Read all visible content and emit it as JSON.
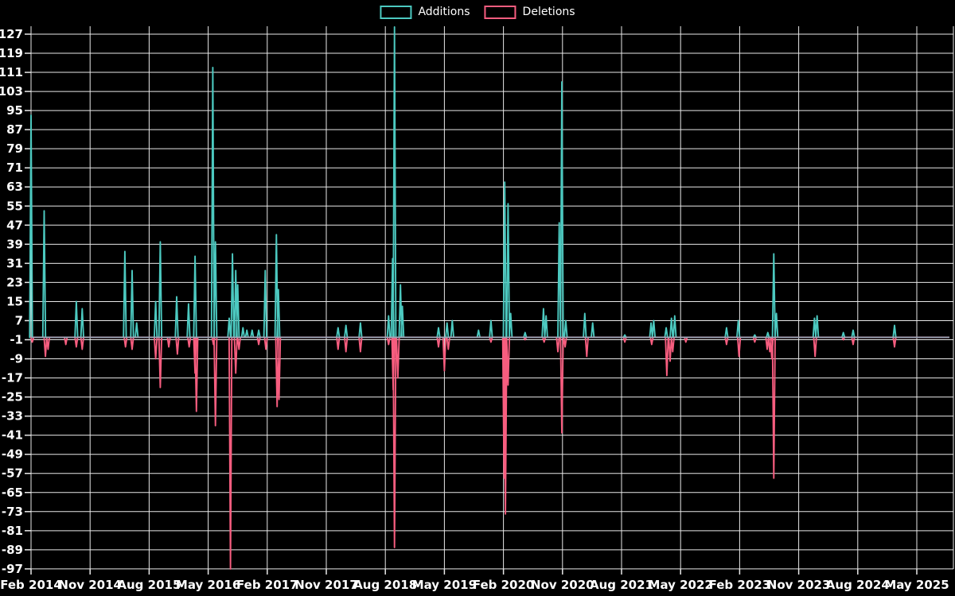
{
  "background": "#000000",
  "legend": {
    "items": [
      {
        "label": "Additions",
        "color": "#4CC9C0"
      },
      {
        "label": "Deletions",
        "color": "#F75D7F"
      }
    ]
  },
  "chart_data": {
    "type": "line",
    "title": "",
    "description": "Code-frequency style spike chart of additions (teal, above zero) and deletions (pink, below zero) from Feb 2014 to May 2025; flat at zero between sparse spikes",
    "x_unit": "months_since_2014_02",
    "x_axis": {
      "tick_labels": [
        "Feb 2014",
        "Nov 2014",
        "Aug 2015",
        "May 2016",
        "Feb 2017",
        "Nov 2017",
        "Aug 2018",
        "May 2019",
        "Feb 2020",
        "Nov 2020",
        "Aug 2021",
        "May 2022",
        "Feb 2023",
        "Nov 2023",
        "Aug 2024",
        "May 2025"
      ],
      "months_per_tick": 9
    },
    "y_axis": {
      "ticks": [
        127,
        119,
        111,
        103,
        95,
        87,
        79,
        71,
        63,
        55,
        47,
        39,
        31,
        23,
        15,
        7,
        -1,
        -9,
        -17,
        -25,
        -33,
        -41,
        -49,
        -57,
        -65,
        -73,
        -81,
        -89,
        -97
      ],
      "range_shown": [
        -97,
        127
      ]
    },
    "grid": true,
    "grid_color": "#E8E8E8",
    "zero_line_color": "#98A8B8",
    "legend_position": "top-center",
    "series": [
      {
        "name": "Additions",
        "color": "#4CC9C0",
        "baseline": 0,
        "spikes": [
          [
            0,
            93
          ],
          [
            2,
            53
          ],
          [
            6.9,
            15
          ],
          [
            7.8,
            12
          ],
          [
            14.3,
            36
          ],
          [
            15.4,
            28
          ],
          [
            16.1,
            6
          ],
          [
            19,
            15
          ],
          [
            19.7,
            40
          ],
          [
            22.2,
            17
          ],
          [
            24,
            14
          ],
          [
            25,
            34
          ],
          [
            27.7,
            113
          ],
          [
            28.1,
            40
          ],
          [
            30.2,
            8
          ],
          [
            30.7,
            35
          ],
          [
            31.2,
            28
          ],
          [
            31.5,
            22
          ],
          [
            32.3,
            4
          ],
          [
            32.9,
            3
          ],
          [
            33.7,
            3
          ],
          [
            34.7,
            3
          ],
          [
            35.7,
            28
          ],
          [
            37.4,
            43
          ],
          [
            37.7,
            20
          ],
          [
            46.8,
            4
          ],
          [
            48,
            5
          ],
          [
            50.2,
            6
          ],
          [
            54.5,
            9
          ],
          [
            55.1,
            33
          ],
          [
            55.4,
            130
          ],
          [
            56.3,
            22
          ],
          [
            56.6,
            13
          ],
          [
            62.1,
            4
          ],
          [
            63.4,
            6
          ],
          [
            64.2,
            7
          ],
          [
            68.2,
            3
          ],
          [
            70.1,
            7
          ],
          [
            72.2,
            65
          ],
          [
            72.7,
            56
          ],
          [
            73.1,
            10
          ],
          [
            75.3,
            2
          ],
          [
            78.1,
            12
          ],
          [
            78.5,
            9
          ],
          [
            80.5,
            48
          ],
          [
            80.9,
            107
          ],
          [
            81.5,
            7
          ],
          [
            84.4,
            10
          ],
          [
            85.6,
            6
          ],
          [
            90.5,
            1
          ],
          [
            94.5,
            6
          ],
          [
            94.9,
            7
          ],
          [
            96.8,
            4
          ],
          [
            97.6,
            8
          ],
          [
            98.1,
            9
          ],
          [
            106,
            4
          ],
          [
            107.8,
            7
          ],
          [
            110.3,
            1
          ],
          [
            112.3,
            2
          ],
          [
            113.2,
            35
          ],
          [
            113.6,
            10
          ],
          [
            119.4,
            8
          ],
          [
            119.8,
            9
          ],
          [
            123.8,
            2
          ],
          [
            125.3,
            3
          ],
          [
            131.6,
            5
          ]
        ]
      },
      {
        "name": "Deletions",
        "color": "#F75D7F",
        "baseline": 0,
        "spikes": [
          [
            0.2,
            -2
          ],
          [
            2.2,
            -8
          ],
          [
            2.6,
            -5
          ],
          [
            5.3,
            -3
          ],
          [
            6.9,
            -4
          ],
          [
            7.8,
            -5
          ],
          [
            14.4,
            -4
          ],
          [
            15.4,
            -5
          ],
          [
            19,
            -9
          ],
          [
            19.7,
            -21
          ],
          [
            21,
            -4
          ],
          [
            22.3,
            -7
          ],
          [
            24.1,
            -4
          ],
          [
            25,
            -15
          ],
          [
            25.2,
            -31
          ],
          [
            27.8,
            -3
          ],
          [
            28.1,
            -37
          ],
          [
            30.4,
            -97
          ],
          [
            31.2,
            -15
          ],
          [
            31.7,
            -5
          ],
          [
            34.7,
            -3
          ],
          [
            35.8,
            -5
          ],
          [
            37.5,
            -29
          ],
          [
            37.8,
            -26
          ],
          [
            46.8,
            -5
          ],
          [
            48,
            -6
          ],
          [
            50.2,
            -6
          ],
          [
            54.5,
            -3
          ],
          [
            55.2,
            -22
          ],
          [
            55.4,
            -88
          ],
          [
            55.9,
            -17
          ],
          [
            62.1,
            -4
          ],
          [
            63,
            -14
          ],
          [
            63.6,
            -5
          ],
          [
            70.1,
            -2
          ],
          [
            72.1,
            -59
          ],
          [
            72.3,
            -74
          ],
          [
            72.7,
            -20
          ],
          [
            75.3,
            -1
          ],
          [
            78.2,
            -2
          ],
          [
            80.3,
            -6
          ],
          [
            80.9,
            -40
          ],
          [
            81.4,
            -4
          ],
          [
            84.7,
            -8
          ],
          [
            90.5,
            -2
          ],
          [
            94.6,
            -3
          ],
          [
            96.9,
            -16
          ],
          [
            97.4,
            -10
          ],
          [
            97.8,
            -6
          ],
          [
            99.8,
            -2
          ],
          [
            106,
            -3
          ],
          [
            107.9,
            -8
          ],
          [
            110.3,
            -2
          ],
          [
            112.2,
            -5
          ],
          [
            112.6,
            -6
          ],
          [
            112.9,
            -9
          ],
          [
            113.2,
            -59
          ],
          [
            119.5,
            -8
          ],
          [
            123.8,
            -1
          ],
          [
            125.3,
            -3
          ],
          [
            131.6,
            -4
          ]
        ]
      }
    ]
  }
}
